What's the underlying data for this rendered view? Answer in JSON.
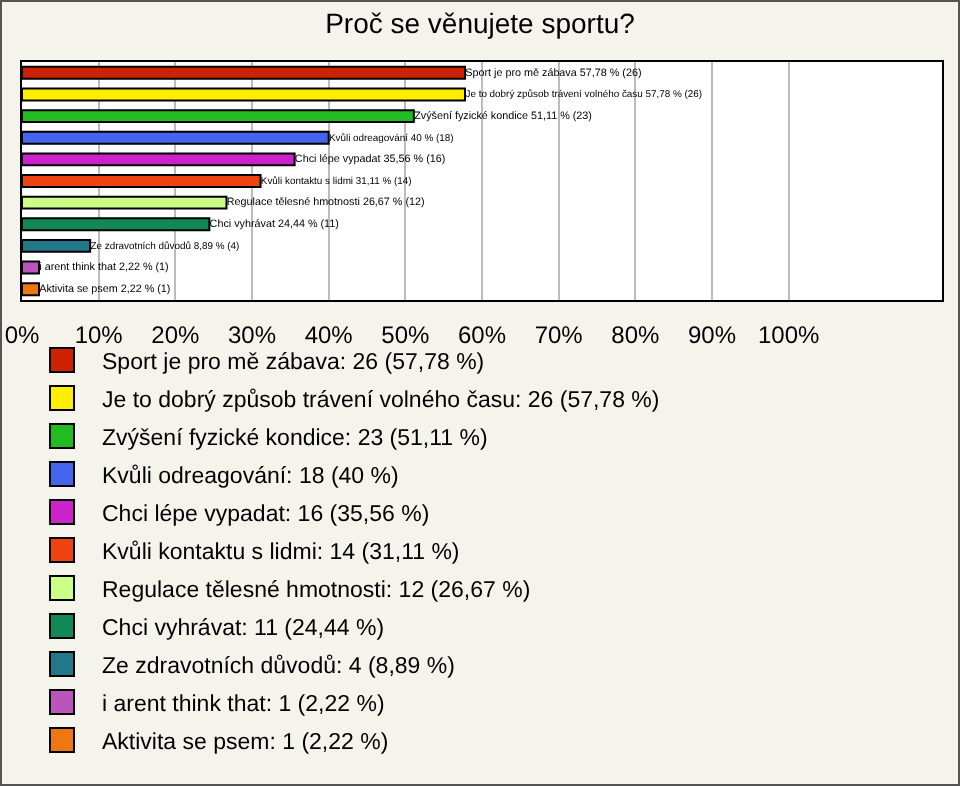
{
  "chart_data": {
    "type": "bar",
    "orientation": "horizontal",
    "title": "Proč se věnujete sportu?",
    "categories": [
      null,
      null,
      null,
      null,
      null,
      null,
      null,
      null,
      null,
      null,
      null
    ],
    "series": [
      {
        "name": "Sport je pro mě zábava: 26 (57,78 %)",
        "color": "#cc2200",
        "values": [
          57.78,
          null,
          null,
          null,
          null,
          null,
          null,
          null,
          null,
          null,
          null
        ],
        "value_labels": [
          "Sport je pro mě zábava 57,78 % (26)",
          null,
          null,
          null,
          null,
          null,
          null,
          null,
          null,
          null,
          null
        ]
      },
      {
        "name": "Je to dobrý způsob trávení volného času: 26 (57,78 %)",
        "color": "#ffee00",
        "values": [
          null,
          57.78,
          null,
          null,
          null,
          null,
          null,
          null,
          null,
          null,
          null
        ],
        "value_labels": [
          null,
          "Je to dobrý způsob trávení volného času 57,78 % (26)",
          null,
          null,
          null,
          null,
          null,
          null,
          null,
          null,
          null
        ]
      },
      {
        "name": "Zvýšení fyzické kondice: 23 (51,11 %)",
        "color": "#22bb22",
        "values": [
          null,
          null,
          51.11,
          null,
          null,
          null,
          null,
          null,
          null,
          null,
          null
        ],
        "value_labels": [
          null,
          null,
          "Zvýšení fyzické kondice 51,11 % (23)",
          null,
          null,
          null,
          null,
          null,
          null,
          null,
          null
        ]
      },
      {
        "name": "Kvůli odreagování: 18 (40 %)",
        "color": "#4466ee",
        "values": [
          null,
          null,
          null,
          40,
          null,
          null,
          null,
          null,
          null,
          null,
          null
        ],
        "value_labels": [
          null,
          null,
          null,
          "Kvůli odreagování 40 % (18)",
          null,
          null,
          null,
          null,
          null,
          null,
          null
        ]
      },
      {
        "name": "Chci lépe vypadat: 16 (35,56 %)",
        "color": "#cc22cc",
        "values": [
          null,
          null,
          null,
          null,
          35.56,
          null,
          null,
          null,
          null,
          null,
          null
        ],
        "value_labels": [
          null,
          null,
          null,
          null,
          "Chci lépe vypadat 35,56 % (16)",
          null,
          null,
          null,
          null,
          null,
          null
        ]
      },
      {
        "name": "Kvůli kontaktu s lidmi: 14 (31,11 %)",
        "color": "#ee4411",
        "values": [
          null,
          null,
          null,
          null,
          null,
          31.11,
          null,
          null,
          null,
          null,
          null
        ],
        "value_labels": [
          null,
          null,
          null,
          null,
          null,
          "Kvůli kontaktu s lidmi 31,11 % (14)",
          null,
          null,
          null,
          null,
          null
        ]
      },
      {
        "name": "Regulace tělesné hmotnosti: 12 (26,67 %)",
        "color": "#ccff88",
        "values": [
          null,
          null,
          null,
          null,
          null,
          null,
          26.67,
          null,
          null,
          null,
          null
        ],
        "value_labels": [
          null,
          null,
          null,
          null,
          null,
          null,
          "Regulace tělesné hmotnosti 26,67 % (12)",
          null,
          null,
          null,
          null
        ]
      },
      {
        "name": "Chci vyhrávat: 11 (24,44 %)",
        "color": "#118855",
        "values": [
          null,
          null,
          null,
          null,
          null,
          null,
          null,
          24.44,
          null,
          null,
          null
        ],
        "value_labels": [
          null,
          null,
          null,
          null,
          null,
          null,
          null,
          "Chci vyhrávat 24,44 % (11)",
          null,
          null,
          null
        ]
      },
      {
        "name": "Ze zdravotních důvodů: 4 (8,89 %)",
        "color": "#227788",
        "values": [
          null,
          null,
          null,
          null,
          null,
          null,
          null,
          null,
          8.89,
          null,
          null
        ],
        "value_labels": [
          null,
          null,
          null,
          null,
          null,
          null,
          null,
          null,
          "Ze zdravotních důvodů 8,89 % (4)",
          null,
          null
        ]
      },
      {
        "name": "i arent think that: 1 (2,22 %)",
        "color": "#bb55bb",
        "values": [
          null,
          null,
          null,
          null,
          null,
          null,
          null,
          null,
          null,
          2.22,
          null
        ],
        "value_labels": [
          null,
          null,
          null,
          null,
          null,
          null,
          null,
          null,
          null,
          "i arent think that 2,22 % (1)",
          null
        ]
      },
      {
        "name": "Aktivita se psem: 1 (2,22 %)",
        "color": "#ee7711",
        "values": [
          null,
          null,
          null,
          null,
          null,
          null,
          null,
          null,
          null,
          null,
          2.22
        ],
        "value_labels": [
          null,
          null,
          null,
          null,
          null,
          null,
          null,
          null,
          null,
          null,
          "Aktivita se psem 2,22 % (1)"
        ]
      }
    ],
    "xlim": [
      0,
      120
    ],
    "xticks": [
      {
        "value": 0,
        "label": "0%"
      },
      {
        "value": 10,
        "label": "10%"
      },
      {
        "value": 20,
        "label": "20%"
      },
      {
        "value": 30,
        "label": "30%"
      },
      {
        "value": 40,
        "label": "40%"
      },
      {
        "value": 50,
        "label": "50%"
      },
      {
        "value": 60,
        "label": "60%"
      },
      {
        "value": 70,
        "label": "70%"
      },
      {
        "value": 80,
        "label": "80%"
      },
      {
        "value": 90,
        "label": "90%"
      },
      {
        "value": 100,
        "label": "100%"
      }
    ],
    "grid": "x",
    "legend": "bottom",
    "tick_labels": "x"
  }
}
